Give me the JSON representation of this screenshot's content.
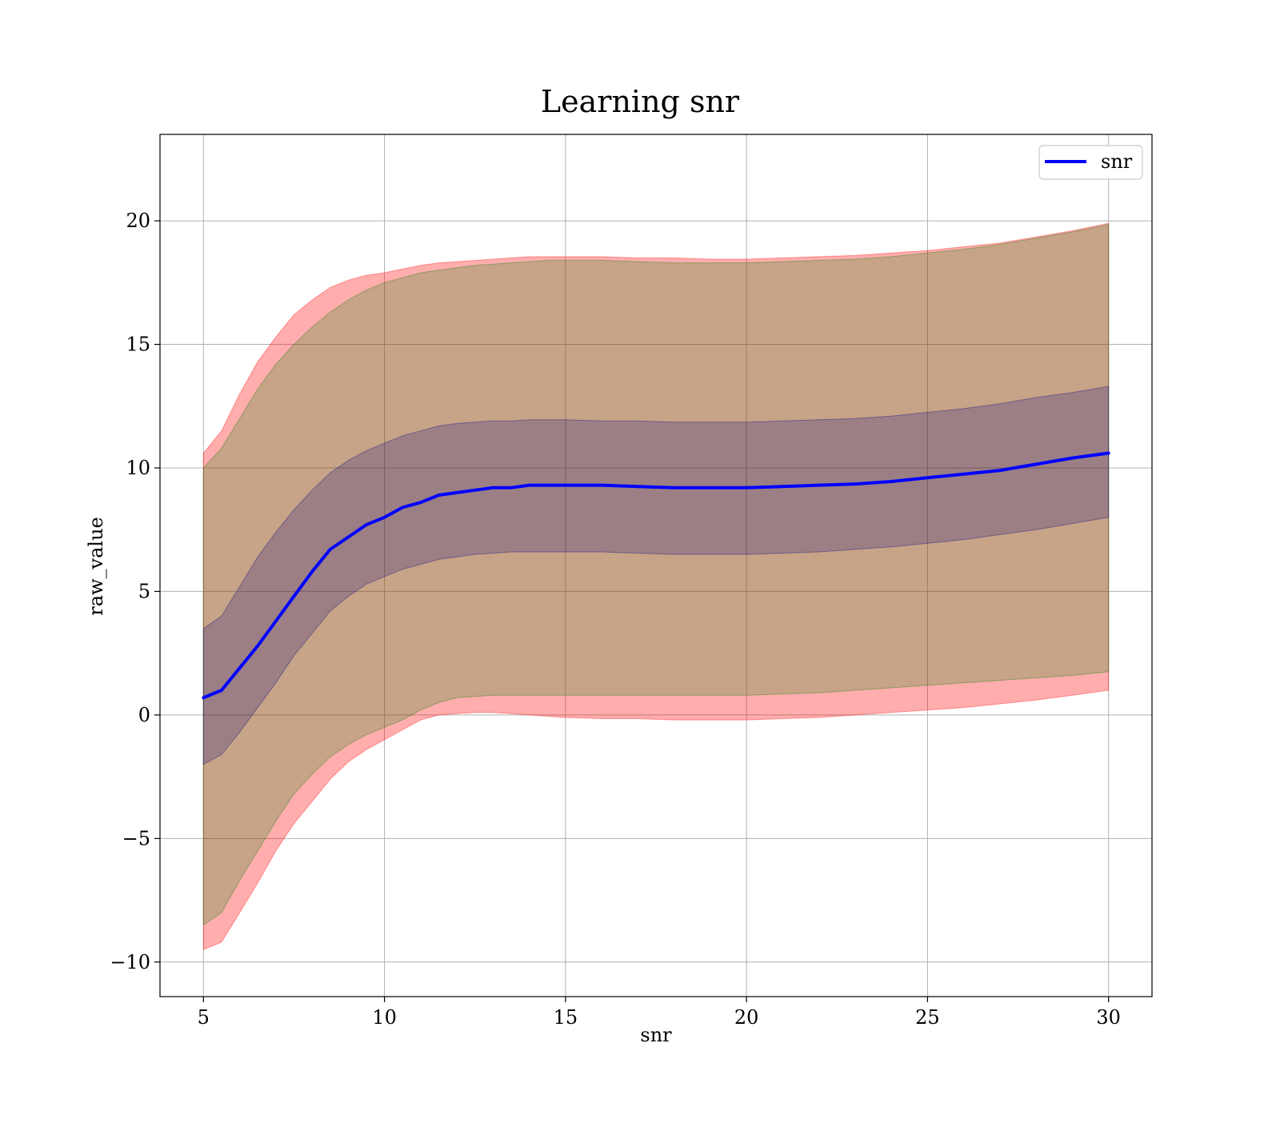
{
  "chart_data": {
    "type": "area",
    "title": "Learning snr",
    "xlabel": "snr",
    "ylabel": "raw_value",
    "xlim": [
      3.8,
      31.2
    ],
    "ylim": [
      -11.4,
      23.5
    ],
    "xticks": [
      5,
      10,
      15,
      20,
      25,
      30
    ],
    "yticks": [
      -10,
      -5,
      0,
      5,
      10,
      15,
      20
    ],
    "xtick_labels": [
      "5",
      "10",
      "15",
      "20",
      "25",
      "30"
    ],
    "ytick_labels": [
      "−10",
      "−5",
      "0",
      "5",
      "10",
      "15",
      "20"
    ],
    "grid": true,
    "legend": {
      "position": "top-right",
      "entries": [
        "snr"
      ]
    },
    "x": [
      5,
      5.5,
      6,
      6.5,
      7,
      7.5,
      8,
      8.5,
      9,
      9.5,
      10,
      10.5,
      11,
      11.5,
      12,
      12.5,
      13,
      13.5,
      14,
      14.5,
      15,
      16,
      17,
      18,
      19,
      20,
      21,
      22,
      23,
      24,
      25,
      26,
      27,
      28,
      29,
      30
    ],
    "series": [
      {
        "name": "snr",
        "color": "#0000ff",
        "values": [
          0.7,
          1.0,
          1.9,
          2.8,
          3.8,
          4.8,
          5.8,
          6.7,
          7.2,
          7.7,
          8.0,
          8.4,
          8.6,
          8.9,
          9.0,
          9.1,
          9.2,
          9.2,
          9.3,
          9.3,
          9.3,
          9.3,
          9.25,
          9.2,
          9.2,
          9.2,
          9.25,
          9.3,
          9.35,
          9.45,
          9.6,
          9.75,
          9.9,
          10.15,
          10.4,
          10.6
        ]
      }
    ],
    "bands": [
      {
        "color": "#ff0000",
        "opacity": 0.32,
        "lower": [
          -9.5,
          -9.2,
          -8.0,
          -6.8,
          -5.5,
          -4.4,
          -3.5,
          -2.6,
          -1.9,
          -1.4,
          -1.0,
          -0.6,
          -0.2,
          0.0,
          0.05,
          0.1,
          0.1,
          0.05,
          0.0,
          -0.05,
          -0.1,
          -0.15,
          -0.15,
          -0.2,
          -0.2,
          -0.2,
          -0.15,
          -0.1,
          0.0,
          0.1,
          0.2,
          0.3,
          0.45,
          0.6,
          0.8,
          1.0
        ],
        "upper": [
          10.6,
          11.5,
          13.0,
          14.3,
          15.3,
          16.2,
          16.8,
          17.3,
          17.6,
          17.8,
          17.9,
          18.05,
          18.2,
          18.3,
          18.35,
          18.4,
          18.45,
          18.5,
          18.55,
          18.55,
          18.55,
          18.55,
          18.5,
          18.5,
          18.45,
          18.45,
          18.5,
          18.55,
          18.6,
          18.7,
          18.8,
          18.95,
          19.1,
          19.35,
          19.6,
          19.9
        ]
      },
      {
        "color": "#008000",
        "opacity": 0.22,
        "lower": [
          -8.5,
          -8.0,
          -6.7,
          -5.5,
          -4.3,
          -3.2,
          -2.4,
          -1.7,
          -1.2,
          -0.8,
          -0.5,
          -0.2,
          0.2,
          0.5,
          0.7,
          0.75,
          0.8,
          0.8,
          0.8,
          0.8,
          0.8,
          0.8,
          0.8,
          0.8,
          0.8,
          0.8,
          0.85,
          0.9,
          1.0,
          1.1,
          1.2,
          1.3,
          1.4,
          1.5,
          1.6,
          1.75
        ],
        "upper": [
          10.0,
          10.8,
          12.0,
          13.2,
          14.2,
          15.0,
          15.7,
          16.3,
          16.8,
          17.2,
          17.5,
          17.7,
          17.9,
          18.0,
          18.1,
          18.2,
          18.25,
          18.3,
          18.35,
          18.4,
          18.4,
          18.4,
          18.35,
          18.3,
          18.3,
          18.3,
          18.35,
          18.4,
          18.45,
          18.55,
          18.7,
          18.85,
          19.05,
          19.3,
          19.55,
          19.85
        ]
      },
      {
        "color": "#000080",
        "opacity": 0.22,
        "lower": [
          -2.0,
          -1.6,
          -0.7,
          0.3,
          1.3,
          2.4,
          3.3,
          4.2,
          4.8,
          5.3,
          5.6,
          5.9,
          6.1,
          6.3,
          6.4,
          6.5,
          6.55,
          6.6,
          6.6,
          6.6,
          6.6,
          6.6,
          6.55,
          6.5,
          6.5,
          6.5,
          6.55,
          6.6,
          6.7,
          6.8,
          6.95,
          7.1,
          7.3,
          7.5,
          7.75,
          8.0
        ],
        "upper": [
          3.5,
          4.0,
          5.2,
          6.4,
          7.4,
          8.3,
          9.1,
          9.8,
          10.3,
          10.7,
          11.0,
          11.3,
          11.5,
          11.7,
          11.8,
          11.85,
          11.9,
          11.9,
          11.95,
          11.95,
          11.95,
          11.9,
          11.9,
          11.85,
          11.85,
          11.85,
          11.9,
          11.95,
          12.0,
          12.1,
          12.25,
          12.4,
          12.6,
          12.85,
          13.05,
          13.3
        ]
      }
    ]
  }
}
